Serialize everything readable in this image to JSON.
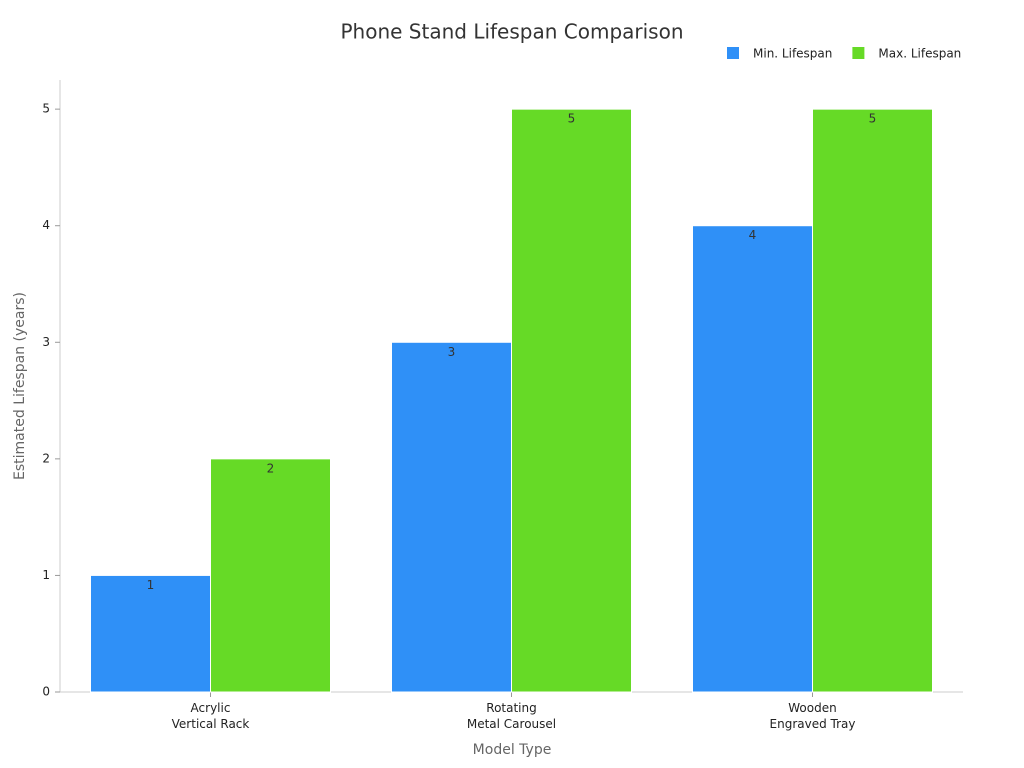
{
  "chart_data": {
    "type": "bar",
    "title": "Phone Stand Lifespan Comparison",
    "x_label": "Model Type",
    "y_label": "Estimated Lifespan (years)",
    "categories": [
      "Acrylic\nVertical Rack",
      "Rotating\nMetal Carousel",
      "Wooden\nEngraved Tray"
    ],
    "series": [
      {
        "name": "Min. Lifespan",
        "color": "#2f90f7",
        "values": [
          1,
          3,
          4
        ]
      },
      {
        "name": "Max. Lifespan",
        "color": "#66da26",
        "values": [
          2,
          5,
          5
        ]
      }
    ],
    "ylim": [
      0,
      5.25
    ],
    "yticks": [
      0,
      1,
      2,
      3,
      4,
      5
    ],
    "grid": false,
    "legend": "top-right"
  }
}
